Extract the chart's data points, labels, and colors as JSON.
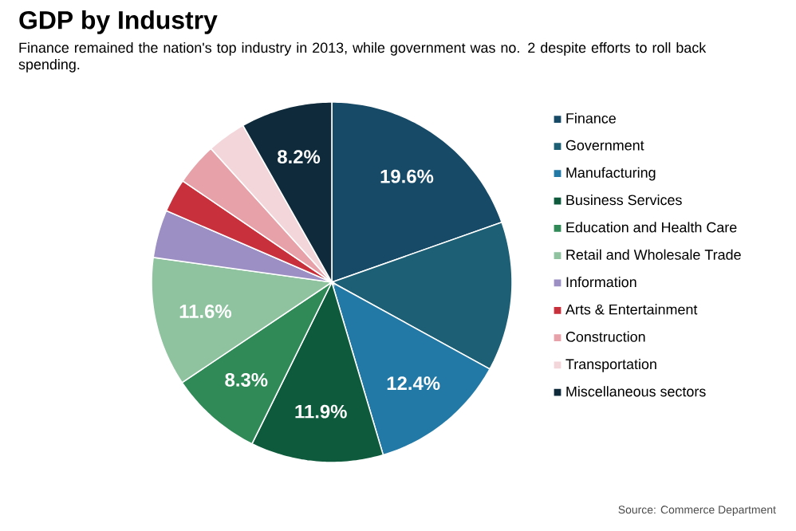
{
  "chart_data": {
    "type": "pie",
    "title": "GDP by Industry",
    "subtitle": "Finance remained the nation's top industry in 2013, while government was no. 2 despite efforts to roll back spending.",
    "categories": [
      "Finance",
      "Government",
      "Manufacturing",
      "Business Services",
      "Education and Health Care",
      "Retail and Wholesale Trade",
      "Information",
      "Arts & Entertainment",
      "Construction",
      "Transportation",
      "Miscellaneous sectors"
    ],
    "values": [
      19.6,
      13.4,
      12.4,
      11.9,
      8.3,
      11.6,
      4.3,
      3.0,
      3.8,
      3.5,
      8.2
    ],
    "value_labels": [
      "19.6%",
      null,
      "12.4%",
      "11.9%",
      "8.3%",
      "11.6%",
      null,
      null,
      null,
      null,
      "8.2%"
    ],
    "colors": [
      "#174a66",
      "#1d5f74",
      "#2279a6",
      "#0d5a3c",
      "#2f8a58",
      "#8fc3a0",
      "#9c8fc4",
      "#c8303c",
      "#e6a1a9",
      "#f3d6da",
      "#0f2b3b"
    ],
    "legend": "right",
    "annotations": [
      "Source: Commerce Department"
    ]
  }
}
